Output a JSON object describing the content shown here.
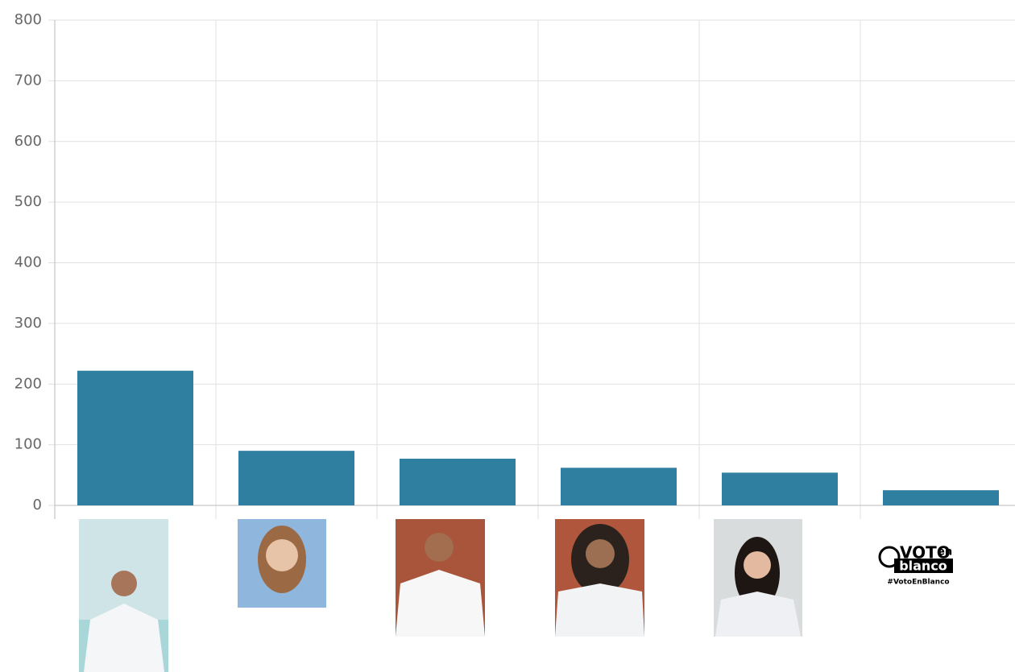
{
  "chart_data": {
    "type": "bar",
    "categories": [
      null,
      null,
      null,
      null,
      null,
      null
    ],
    "values": [
      222,
      90,
      77,
      62,
      54,
      25
    ],
    "color": "#2f7fa0",
    "ylim": [
      0,
      800
    ],
    "yticks": [
      0,
      100,
      200,
      300,
      400,
      500,
      600,
      700,
      800
    ],
    "grid": true
  },
  "logo": {
    "word": "VOTO",
    "small": "en",
    "second": "blanco",
    "hashtag": "#VotoEnBlanco"
  }
}
